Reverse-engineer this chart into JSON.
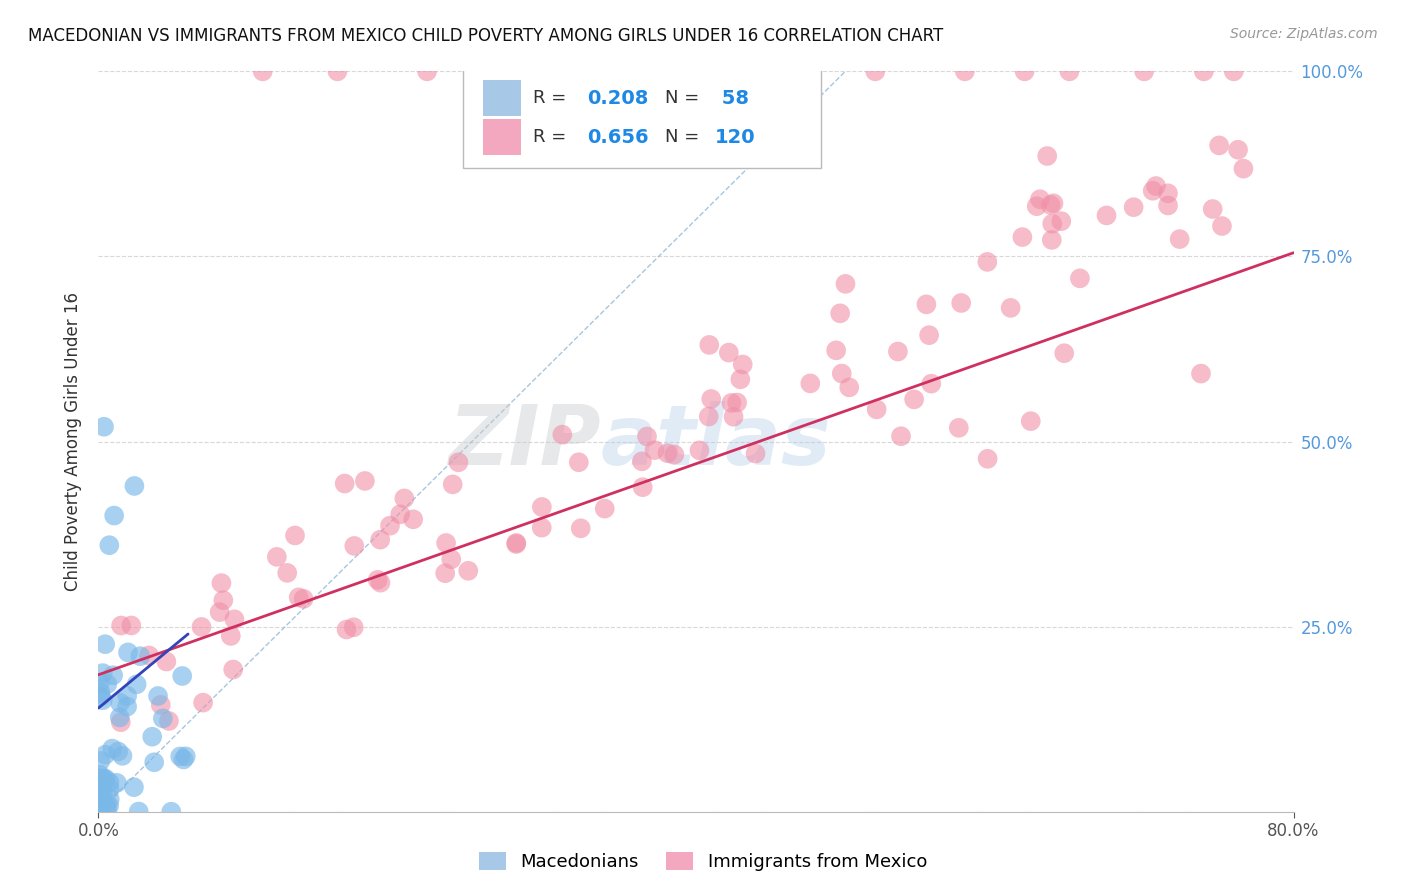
{
  "title": "MACEDONIAN VS IMMIGRANTS FROM MEXICO CHILD POVERTY AMONG GIRLS UNDER 16 CORRELATION CHART",
  "source": "Source: ZipAtlas.com",
  "ylabel": "Child Poverty Among Girls Under 16",
  "xlim": [
    0.0,
    0.8
  ],
  "ylim": [
    0.0,
    1.0
  ],
  "macedonian_color": "#7ab8e8",
  "mexico_color": "#f090a8",
  "trend_mac_color": "#3344bb",
  "trend_mex_color": "#d03060",
  "diagonal_color": "#90b8d8",
  "background_color": "#ffffff",
  "grid_color": "#d8d8d8",
  "watermark_zip": "ZIP",
  "watermark_atlas": "atlas",
  "ytick_color": "#5599dd",
  "macedonian_N": 58,
  "mexico_N": 120
}
